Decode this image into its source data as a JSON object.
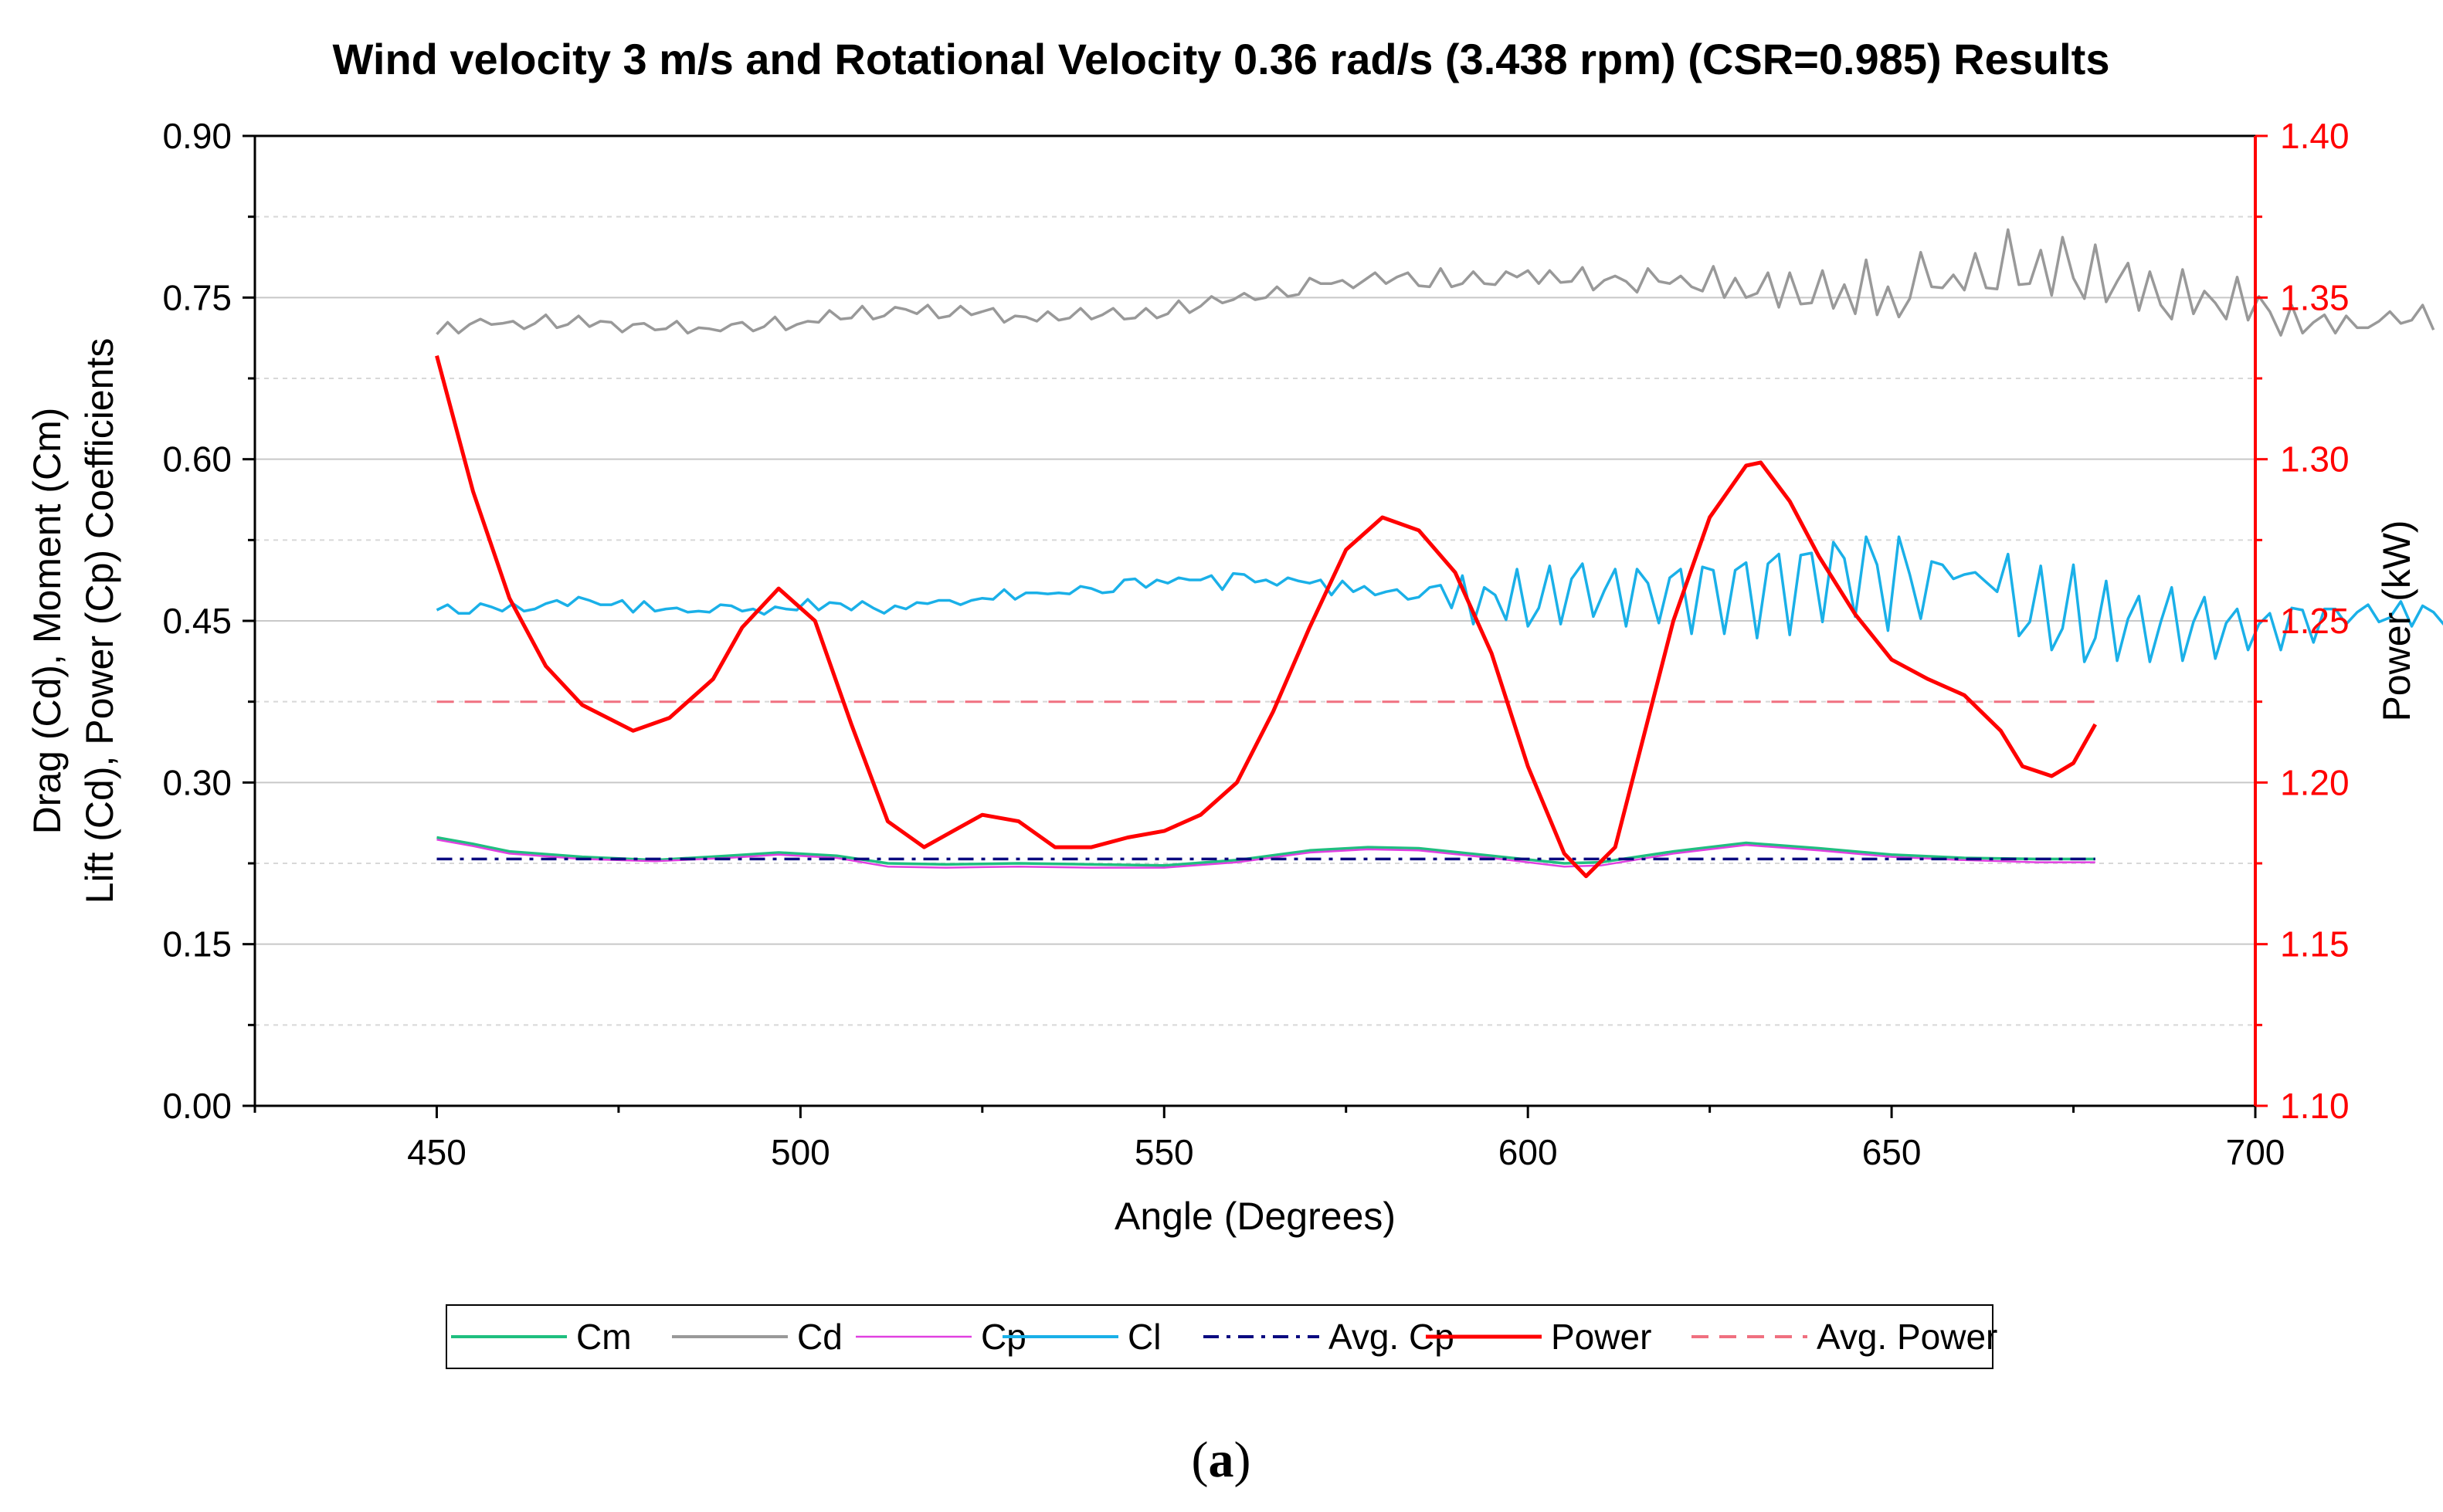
{
  "chart_data": {
    "type": "line",
    "title": "Wind velocity 3 m/s and  Rotational Velocity 0.36 rad/s (3.438 rpm) (CSR=0.985) Results",
    "xlabel": "Angle (Degrees)",
    "ylabel_left_line1": "Drag (Cd), Moment (Cm)",
    "ylabel_left_line2": "Lift (Cd), Power (Cp) Coefficients",
    "ylabel_right": "Power (kW)",
    "xlim": [
      425,
      700
    ],
    "ylim_left": [
      0,
      0.9
    ],
    "ylim_right": [
      1.1,
      1.4
    ],
    "x_ticks": [
      "450",
      "500",
      "550",
      "600",
      "650",
      "700"
    ],
    "y_left_ticks": [
      "0.00",
      "0.15",
      "0.30",
      "0.45",
      "0.60",
      "0.75",
      "0.90"
    ],
    "y_right_ticks": [
      "1.10",
      "1.15",
      "1.20",
      "1.25",
      "1.30",
      "1.35",
      "1.40"
    ],
    "grid": "horizontal",
    "caption_open": "(",
    "caption_letter": "a",
    "caption_close": ")",
    "series": [
      {
        "name": "Cm",
        "axis": "left",
        "color": "#1fbf7f",
        "style": "solid",
        "x": [
          450,
          455,
          460,
          470,
          480,
          490,
          497,
          505,
          512,
          520,
          530,
          540,
          550,
          560,
          570,
          578,
          585,
          595,
          605,
          610,
          620,
          630,
          640,
          650,
          660,
          670,
          678
        ],
        "y": [
          0.249,
          0.243,
          0.236,
          0.231,
          0.228,
          0.232,
          0.235,
          0.232,
          0.225,
          0.224,
          0.225,
          0.224,
          0.223,
          0.228,
          0.237,
          0.24,
          0.239,
          0.232,
          0.225,
          0.226,
          0.236,
          0.244,
          0.239,
          0.233,
          0.23,
          0.229,
          0.229
        ]
      },
      {
        "name": "Cd",
        "axis": "left",
        "color": "#999999",
        "style": "solid",
        "x_start": 450,
        "x_step": 1.5,
        "y": [
          0.716,
          0.727,
          0.717,
          0.725,
          0.73,
          0.725,
          0.726,
          0.728,
          0.721,
          0.726,
          0.734,
          0.722,
          0.725,
          0.733,
          0.723,
          0.728,
          0.727,
          0.718,
          0.725,
          0.726,
          0.72,
          0.721,
          0.728,
          0.717,
          0.722,
          0.721,
          0.719,
          0.725,
          0.727,
          0.719,
          0.723,
          0.732,
          0.72,
          0.725,
          0.728,
          0.727,
          0.738,
          0.73,
          0.731,
          0.742,
          0.73,
          0.733,
          0.741,
          0.739,
          0.735,
          0.743,
          0.731,
          0.733,
          0.742,
          0.734,
          0.737,
          0.74,
          0.727,
          0.733,
          0.732,
          0.728,
          0.737,
          0.729,
          0.731,
          0.74,
          0.73,
          0.734,
          0.74,
          0.73,
          0.731,
          0.74,
          0.731,
          0.735,
          0.747,
          0.736,
          0.742,
          0.751,
          0.745,
          0.748,
          0.754,
          0.748,
          0.75,
          0.76,
          0.751,
          0.753,
          0.768,
          0.763,
          0.763,
          0.766,
          0.759,
          0.766,
          0.773,
          0.763,
          0.769,
          0.773,
          0.761,
          0.76,
          0.777,
          0.76,
          0.763,
          0.774,
          0.763,
          0.762,
          0.774,
          0.769,
          0.775,
          0.763,
          0.775,
          0.764,
          0.765,
          0.778,
          0.757,
          0.766,
          0.77,
          0.765,
          0.755,
          0.777,
          0.765,
          0.763,
          0.77,
          0.76,
          0.756,
          0.779,
          0.75,
          0.768,
          0.75,
          0.754,
          0.773,
          0.741,
          0.773,
          0.744,
          0.745,
          0.775,
          0.74,
          0.762,
          0.735,
          0.785,
          0.734,
          0.76,
          0.732,
          0.749,
          0.792,
          0.76,
          0.759,
          0.771,
          0.757,
          0.791,
          0.759,
          0.758,
          0.813,
          0.762,
          0.763,
          0.794,
          0.752,
          0.806,
          0.768,
          0.749,
          0.799,
          0.746,
          0.765,
          0.782,
          0.738,
          0.774,
          0.743,
          0.73,
          0.776,
          0.735,
          0.756,
          0.745,
          0.73,
          0.769,
          0.729,
          0.751,
          0.737,
          0.715,
          0.743,
          0.717,
          0.727,
          0.734,
          0.717,
          0.733,
          0.722,
          0.722,
          0.728,
          0.737,
          0.726,
          0.729,
          0.743,
          0.72
        ]
      },
      {
        "name": "Cp",
        "axis": "left",
        "color": "#e040e0",
        "style": "solid",
        "x": [
          450,
          455,
          460,
          470,
          480,
          490,
          497,
          505,
          512,
          520,
          530,
          540,
          550,
          560,
          570,
          578,
          585,
          595,
          605,
          610,
          620,
          630,
          640,
          650,
          660,
          670,
          678
        ],
        "y": [
          0.247,
          0.241,
          0.234,
          0.229,
          0.227,
          0.23,
          0.233,
          0.23,
          0.222,
          0.221,
          0.222,
          0.221,
          0.221,
          0.226,
          0.235,
          0.238,
          0.237,
          0.23,
          0.222,
          0.223,
          0.234,
          0.242,
          0.237,
          0.231,
          0.228,
          0.226,
          0.226
        ]
      },
      {
        "name": "Cl",
        "axis": "left",
        "color": "#1ab0e8",
        "style": "solid",
        "x_start": 450,
        "x_step": 1.5,
        "y": [
          0.46,
          0.465,
          0.457,
          0.457,
          0.466,
          0.463,
          0.459,
          0.466,
          0.459,
          0.461,
          0.466,
          0.469,
          0.464,
          0.472,
          0.469,
          0.465,
          0.465,
          0.469,
          0.458,
          0.468,
          0.459,
          0.461,
          0.462,
          0.458,
          0.459,
          0.458,
          0.465,
          0.464,
          0.459,
          0.461,
          0.456,
          0.463,
          0.461,
          0.46,
          0.47,
          0.46,
          0.467,
          0.466,
          0.46,
          0.468,
          0.462,
          0.457,
          0.464,
          0.461,
          0.467,
          0.466,
          0.469,
          0.469,
          0.465,
          0.469,
          0.471,
          0.47,
          0.479,
          0.47,
          0.476,
          0.476,
          0.475,
          0.476,
          0.475,
          0.482,
          0.48,
          0.476,
          0.477,
          0.488,
          0.489,
          0.481,
          0.488,
          0.485,
          0.49,
          0.488,
          0.488,
          0.492,
          0.479,
          0.494,
          0.493,
          0.486,
          0.488,
          0.483,
          0.49,
          0.487,
          0.485,
          0.488,
          0.474,
          0.487,
          0.477,
          0.482,
          0.474,
          0.477,
          0.479,
          0.47,
          0.472,
          0.481,
          0.483,
          0.462,
          0.492,
          0.447,
          0.481,
          0.474,
          0.451,
          0.498,
          0.445,
          0.462,
          0.501,
          0.447,
          0.489,
          0.503,
          0.454,
          0.478,
          0.498,
          0.445,
          0.498,
          0.485,
          0.448,
          0.49,
          0.498,
          0.438,
          0.5,
          0.497,
          0.438,
          0.497,
          0.504,
          0.434,
          0.503,
          0.512,
          0.437,
          0.511,
          0.513,
          0.449,
          0.523,
          0.508,
          0.454,
          0.528,
          0.502,
          0.441,
          0.528,
          0.493,
          0.452,
          0.505,
          0.502,
          0.489,
          0.493,
          0.495,
          0.486,
          0.477,
          0.512,
          0.436,
          0.449,
          0.501,
          0.423,
          0.443,
          0.502,
          0.412,
          0.434,
          0.487,
          0.413,
          0.452,
          0.473,
          0.412,
          0.449,
          0.481,
          0.413,
          0.449,
          0.472,
          0.415,
          0.448,
          0.461,
          0.423,
          0.447,
          0.457,
          0.423,
          0.462,
          0.46,
          0.43,
          0.461,
          0.461,
          0.447,
          0.458,
          0.465,
          0.449,
          0.453,
          0.468,
          0.445,
          0.464,
          0.458,
          0.446,
          0.454
        ]
      },
      {
        "name": "Avg. Cp",
        "axis": "left",
        "color": "#0a0a80",
        "style": "dashdot",
        "x": [
          450,
          678
        ],
        "y": [
          0.229,
          0.229
        ]
      },
      {
        "name": "Power",
        "axis": "right",
        "color": "#ff0000",
        "style": "solid",
        "x": [
          450,
          455,
          460,
          465,
          470,
          477,
          482,
          488,
          492,
          497,
          502,
          507,
          512,
          517,
          521,
          525,
          530,
          535,
          540,
          545,
          550,
          555,
          560,
          565,
          570,
          575,
          580,
          585,
          590,
          595,
          600,
          605,
          608,
          612,
          616,
          620,
          625,
          630,
          632,
          636,
          640,
          645,
          650,
          655,
          660,
          665,
          668,
          672,
          675,
          678
        ],
        "y": [
          1.332,
          1.29,
          1.257,
          1.236,
          1.224,
          1.216,
          1.22,
          1.232,
          1.248,
          1.26,
          1.25,
          1.218,
          1.188,
          1.18,
          1.185,
          1.19,
          1.188,
          1.18,
          1.18,
          1.183,
          1.185,
          1.19,
          1.2,
          1.222,
          1.248,
          1.272,
          1.282,
          1.278,
          1.265,
          1.24,
          1.205,
          1.178,
          1.171,
          1.18,
          1.215,
          1.25,
          1.282,
          1.298,
          1.299,
          1.287,
          1.27,
          1.252,
          1.238,
          1.232,
          1.227,
          1.216,
          1.205,
          1.202,
          1.206,
          1.218
        ]
      },
      {
        "name": "Avg. Power",
        "axis": "right",
        "color": "#f07080",
        "style": "dashed",
        "x": [
          450,
          678
        ],
        "y": [
          1.225,
          1.225
        ]
      }
    ]
  }
}
